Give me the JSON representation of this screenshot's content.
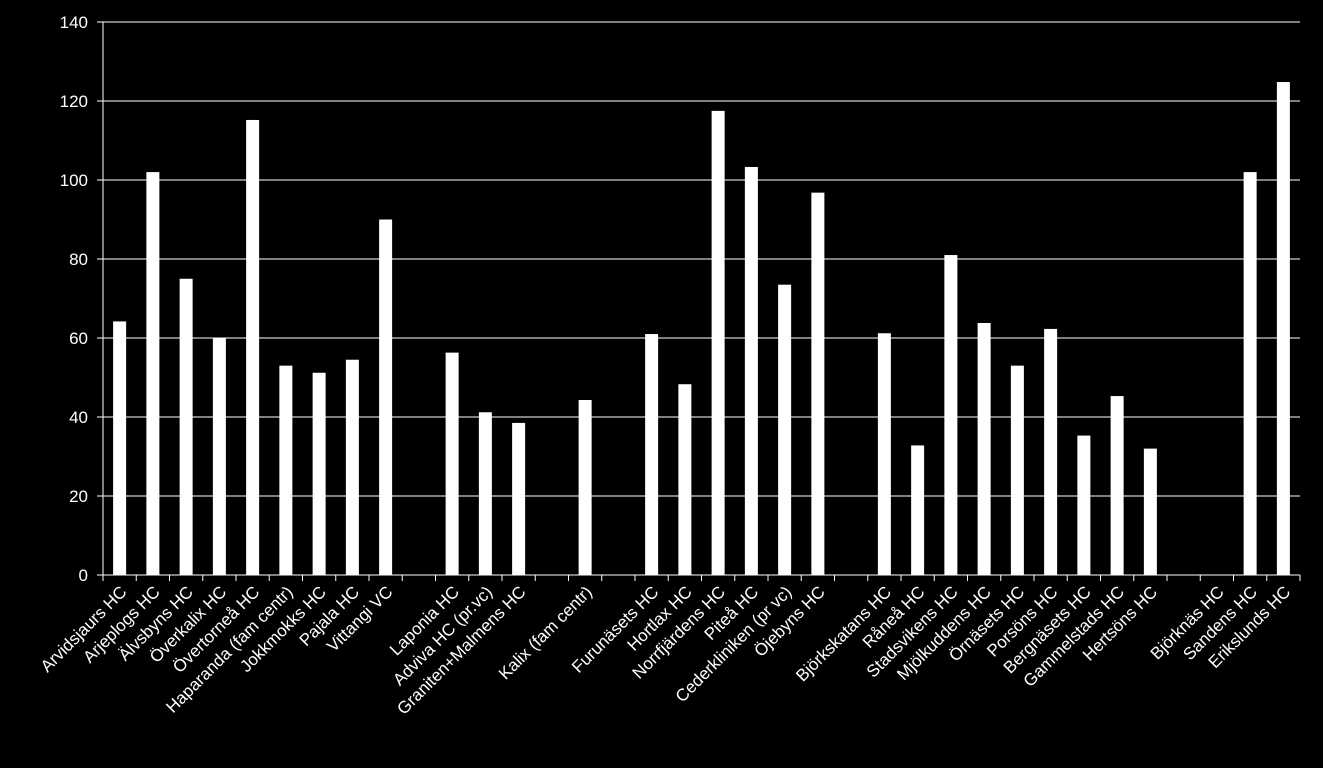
{
  "chart_data": {
    "type": "bar",
    "title": "",
    "xlabel": "",
    "ylabel": "",
    "ylim": [
      0,
      140
    ],
    "yticks": [
      0,
      20,
      40,
      60,
      80,
      100,
      120,
      140
    ],
    "grid": true,
    "legend": "none",
    "colors": {
      "background": "#000000",
      "bar": "#ffffff",
      "grid": "#ffffff",
      "axis": "#ffffff",
      "text": "#ffffff"
    },
    "categories": [
      "Arvidsjaurs HC",
      "Arjeplogs HC",
      "Älvsbyns HC",
      "Överkalix HC",
      "Övertorneå HC",
      "Haparanda (fam centr)",
      "Jokkmokks HC",
      "Pajala HC",
      "Vittangi VC",
      "",
      "Laponia HC",
      "Adviva HC (pr.vc)",
      "Graniten+Malmens HC",
      "",
      "Kalix (fam centr)",
      "",
      "Furunäsets HC",
      "Hortlax HC",
      "Norrfjärdens HC",
      "Piteå HC",
      "Cederkliniken (pr vc)",
      "Öjebyns HC",
      "",
      "Björkskatans HC",
      "Råneå HC",
      "Stadsvikens HC",
      "Mjölkuddens HC",
      "Örnäsets HC",
      "Porsöns HC",
      "Bergnäsets HC",
      "Gammelstads HC",
      "Hertsöns HC",
      "",
      "Björknäs HC",
      "Sandens HC",
      "Erikslunds HC"
    ],
    "values": [
      64.2,
      102,
      75,
      60,
      115.2,
      53,
      51.2,
      54.5,
      90,
      null,
      56.3,
      41.2,
      38.5,
      null,
      44.3,
      null,
      61,
      48.3,
      117.5,
      103.3,
      73.5,
      96.8,
      null,
      61.2,
      32.8,
      81,
      63.8,
      53,
      62.3,
      35.3,
      45.3,
      32,
      null,
      null,
      102,
      124.8
    ]
  }
}
